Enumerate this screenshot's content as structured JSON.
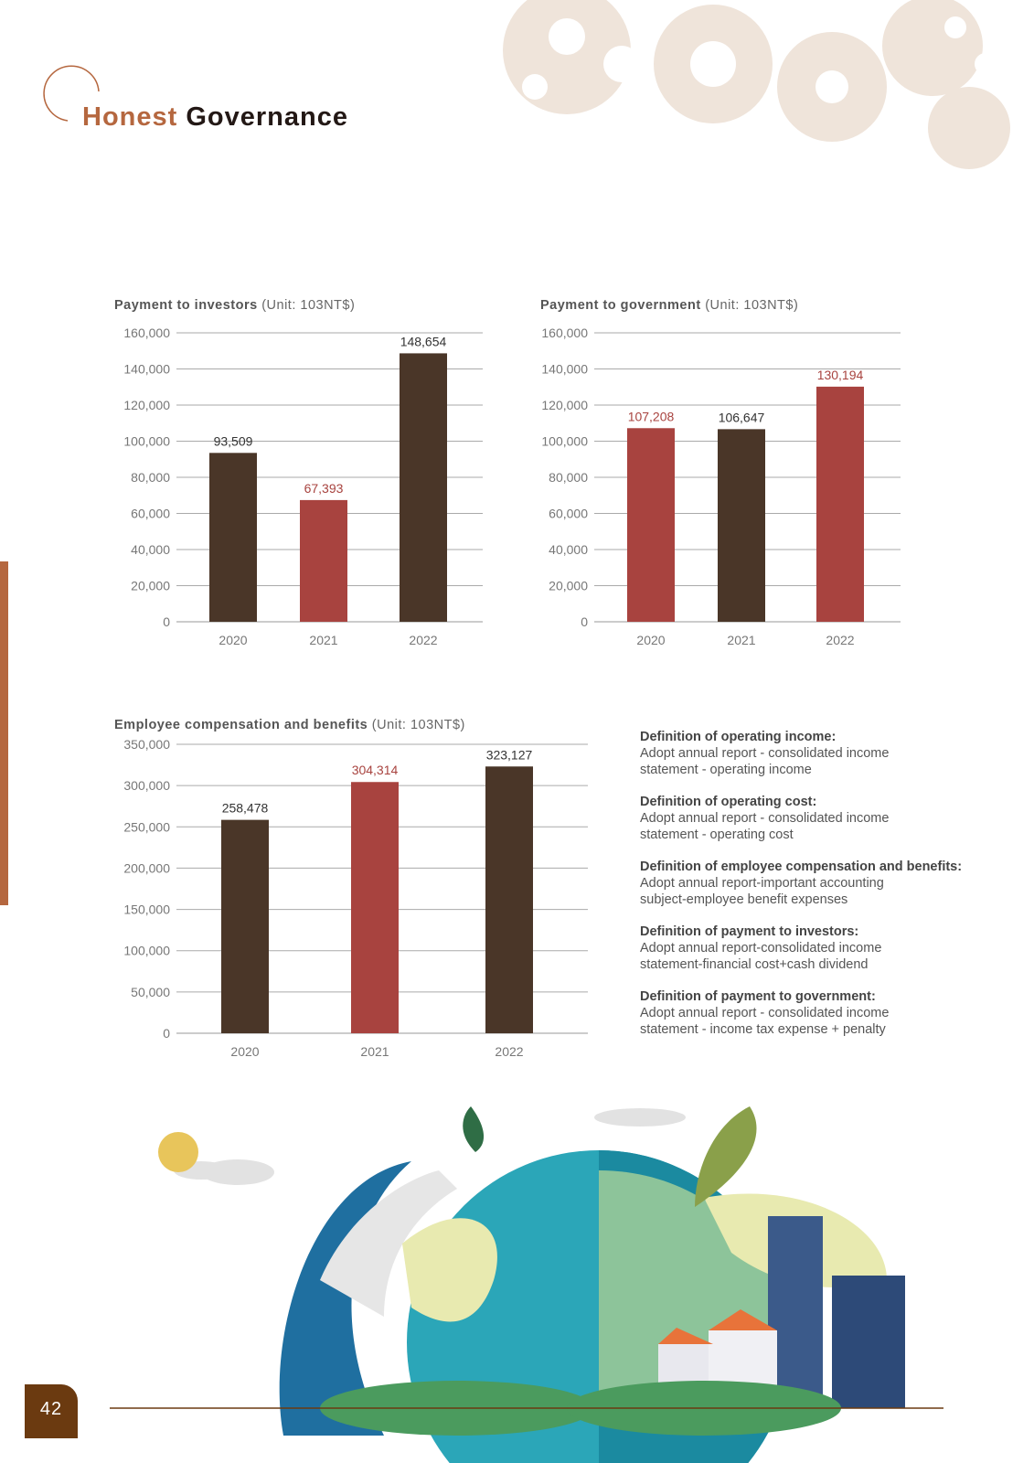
{
  "header": {
    "title_accent": "Honest",
    "title_main": "Governance"
  },
  "colors": {
    "dark": "#4a3628",
    "red": "#a8433f",
    "accent": "#b5673f"
  },
  "chart_data": [
    {
      "type": "bar",
      "title": "Payment to investors",
      "unit": "(Unit: 103NT$)",
      "categories": [
        "2020",
        "2021",
        "2022"
      ],
      "values": [
        93509,
        67393,
        148654
      ],
      "labels": [
        "93,509",
        "67,393",
        "148,654"
      ],
      "bar_colors": [
        "dark",
        "red",
        "dark"
      ],
      "ylim": [
        0,
        160000
      ],
      "yticks": [
        "0",
        "20,000",
        "40,000",
        "60,000",
        "80,000",
        "100,000",
        "120,000",
        "140,000",
        "160,000"
      ],
      "grid": true
    },
    {
      "type": "bar",
      "title": "Payment to government",
      "unit": "(Unit: 103NT$)",
      "categories": [
        "2020",
        "2021",
        "2022"
      ],
      "values": [
        107208,
        106647,
        130194
      ],
      "labels": [
        "107,208",
        "106,647",
        "130,194"
      ],
      "bar_colors": [
        "red",
        "dark",
        "red"
      ],
      "ylim": [
        0,
        160000
      ],
      "yticks": [
        "0",
        "20,000",
        "40,000",
        "60,000",
        "80,000",
        "100,000",
        "120,000",
        "140,000",
        "160,000"
      ],
      "grid": true
    },
    {
      "type": "bar",
      "title": "Employee compensation and benefits",
      "unit": "(Unit: 103NT$)",
      "categories": [
        "2020",
        "2021",
        "2022"
      ],
      "values": [
        258478,
        304314,
        323127
      ],
      "labels": [
        "258,478",
        "304,314",
        "323,127"
      ],
      "bar_colors": [
        "dark",
        "red",
        "dark"
      ],
      "ylim": [
        0,
        350000
      ],
      "yticks": [
        "0",
        "50,000",
        "100,000",
        "150,000",
        "200,000",
        "250,000",
        "300,000",
        "350,000"
      ],
      "grid": true
    }
  ],
  "definitions": [
    {
      "heading": "Definition of operating income:",
      "lines": [
        "Adopt annual report - consolidated income",
        "statement - operating income"
      ]
    },
    {
      "heading": "Definition of operating cost:",
      "lines": [
        "Adopt annual report - consolidated income",
        "statement - operating cost"
      ]
    },
    {
      "heading": "Definition of employee compensation and benefits:",
      "lines": [
        "Adopt annual report-important accounting",
        "subject-employee benefit expenses"
      ]
    },
    {
      "heading": "Definition of payment to investors:",
      "lines": [
        "Adopt annual report-consolidated income",
        "statement-financial cost+cash dividend"
      ]
    },
    {
      "heading": "Definition of payment to government:",
      "lines": [
        "Adopt annual report - consolidated income",
        "statement - income tax expense + penalty"
      ]
    }
  ],
  "footer": {
    "page_number": "42"
  }
}
